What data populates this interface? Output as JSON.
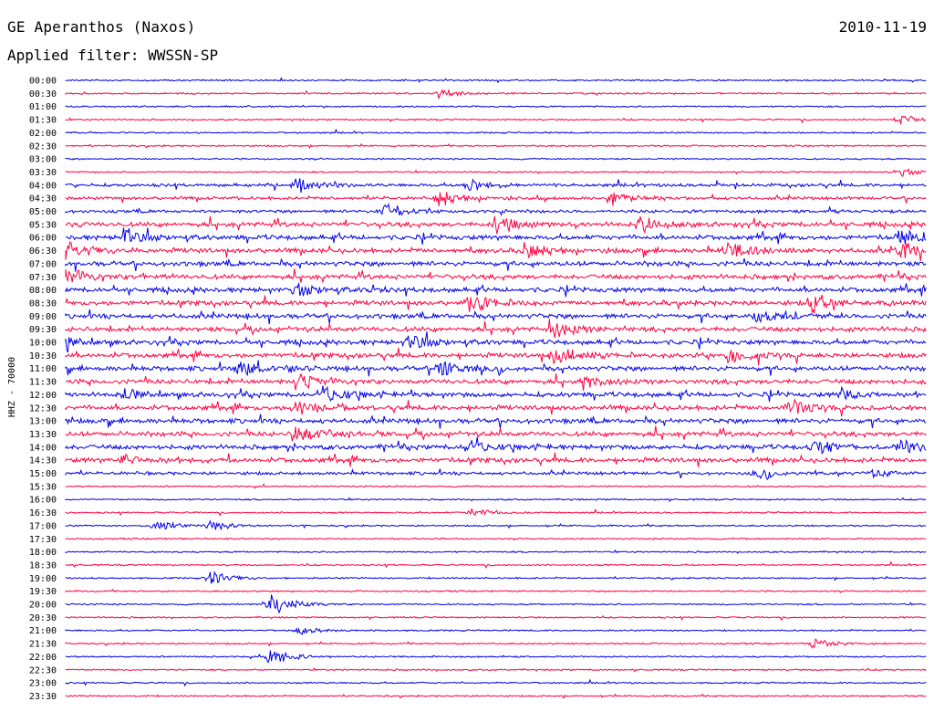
{
  "header": {
    "title": "GE Aperanthos (Naxos)",
    "date": "2010-11-19",
    "filter": "Applied filter: WWSSN-SP"
  },
  "chart_data": {
    "type": "line",
    "ylabel": "HHZ - 70000",
    "row_times": [
      "00:00",
      "00:30",
      "01:00",
      "01:30",
      "02:00",
      "02:30",
      "03:00",
      "03:30",
      "04:00",
      "04:30",
      "05:00",
      "05:30",
      "06:00",
      "06:30",
      "07:00",
      "07:30",
      "08:00",
      "08:30",
      "09:00",
      "09:30",
      "10:00",
      "10:30",
      "11:00",
      "11:30",
      "12:00",
      "12:30",
      "13:00",
      "13:30",
      "14:00",
      "14:30",
      "15:00",
      "15:30",
      "16:00",
      "16:30",
      "17:00",
      "17:30",
      "18:00",
      "18:30",
      "19:00",
      "19:30",
      "20:00",
      "20:30",
      "21:00",
      "21:30",
      "22:00",
      "22:30",
      "23:00",
      "23:30"
    ],
    "colors": [
      "#0000e6",
      "#ff0040"
    ],
    "noise_level": [
      1,
      1,
      1,
      1,
      1,
      1,
      1,
      1,
      2,
      2,
      2,
      3,
      3,
      3,
      3,
      3,
      3,
      3,
      3,
      3,
      3,
      3,
      3,
      3,
      3,
      3,
      3,
      3,
      3,
      3,
      2,
      1,
      1,
      1,
      1,
      1,
      1,
      1,
      1,
      1,
      1,
      1,
      1,
      1,
      1,
      1,
      1,
      1
    ],
    "events": [
      {
        "row": 1,
        "minute": 13,
        "amplitude": 6
      },
      {
        "row": 3,
        "minute": 29,
        "amplitude": 7
      },
      {
        "row": 7,
        "minute": 29,
        "amplitude": 6
      },
      {
        "row": 8,
        "minute": 8,
        "amplitude": 12
      },
      {
        "row": 8,
        "minute": 14,
        "amplitude": 9
      },
      {
        "row": 9,
        "minute": 13,
        "amplitude": 10
      },
      {
        "row": 9,
        "minute": 19,
        "amplitude": 9
      },
      {
        "row": 10,
        "minute": 11,
        "amplitude": 10
      },
      {
        "row": 11,
        "minute": 15,
        "amplitude": 10
      },
      {
        "row": 11,
        "minute": 20,
        "amplitude": 11
      },
      {
        "row": 12,
        "minute": 2,
        "amplitude": 10
      },
      {
        "row": 12,
        "minute": 29,
        "amplitude": 9
      },
      {
        "row": 13,
        "minute": 0,
        "amplitude": 12
      },
      {
        "row": 13,
        "minute": 16,
        "amplitude": 9
      },
      {
        "row": 13,
        "minute": 23,
        "amplitude": 11
      },
      {
        "row": 13,
        "minute": 29,
        "amplitude": 12
      },
      {
        "row": 15,
        "minute": 0,
        "amplitude": 10
      },
      {
        "row": 16,
        "minute": 8,
        "amplitude": 10
      },
      {
        "row": 17,
        "minute": 14,
        "amplitude": 14
      },
      {
        "row": 17,
        "minute": 26,
        "amplitude": 12
      },
      {
        "row": 18,
        "minute": 24,
        "amplitude": 10
      },
      {
        "row": 19,
        "minute": 17,
        "amplitude": 12
      },
      {
        "row": 20,
        "minute": 0,
        "amplitude": 8
      },
      {
        "row": 20,
        "minute": 12,
        "amplitude": 10
      },
      {
        "row": 21,
        "minute": 17,
        "amplitude": 14
      },
      {
        "row": 21,
        "minute": 23,
        "amplitude": 10
      },
      {
        "row": 22,
        "minute": 6,
        "amplitude": 12
      },
      {
        "row": 22,
        "minute": 13,
        "amplitude": 12
      },
      {
        "row": 23,
        "minute": 8,
        "amplitude": 10
      },
      {
        "row": 23,
        "minute": 18,
        "amplitude": 10
      },
      {
        "row": 24,
        "minute": 2,
        "amplitude": 10
      },
      {
        "row": 24,
        "minute": 9,
        "amplitude": 10
      },
      {
        "row": 24,
        "minute": 27,
        "amplitude": 10
      },
      {
        "row": 25,
        "minute": 8,
        "amplitude": 12
      },
      {
        "row": 25,
        "minute": 25,
        "amplitude": 14
      },
      {
        "row": 27,
        "minute": 8,
        "amplitude": 12
      },
      {
        "row": 28,
        "minute": 14,
        "amplitude": 8
      },
      {
        "row": 28,
        "minute": 26,
        "amplitude": 8
      },
      {
        "row": 28,
        "minute": 29,
        "amplitude": 9
      },
      {
        "row": 29,
        "minute": 2,
        "amplitude": 9
      },
      {
        "row": 30,
        "minute": 24,
        "amplitude": 6
      },
      {
        "row": 30,
        "minute": 28,
        "amplitude": 6
      },
      {
        "row": 33,
        "minute": 14,
        "amplitude": 7
      },
      {
        "row": 34,
        "minute": 3,
        "amplitude": 8
      },
      {
        "row": 34,
        "minute": 5,
        "amplitude": 8
      },
      {
        "row": 38,
        "minute": 5,
        "amplitude": 10
      },
      {
        "row": 40,
        "minute": 7,
        "amplitude": 18
      },
      {
        "row": 42,
        "minute": 8,
        "amplitude": 6
      },
      {
        "row": 43,
        "minute": 26,
        "amplitude": 7
      },
      {
        "row": 44,
        "minute": 7,
        "amplitude": 16
      }
    ]
  }
}
